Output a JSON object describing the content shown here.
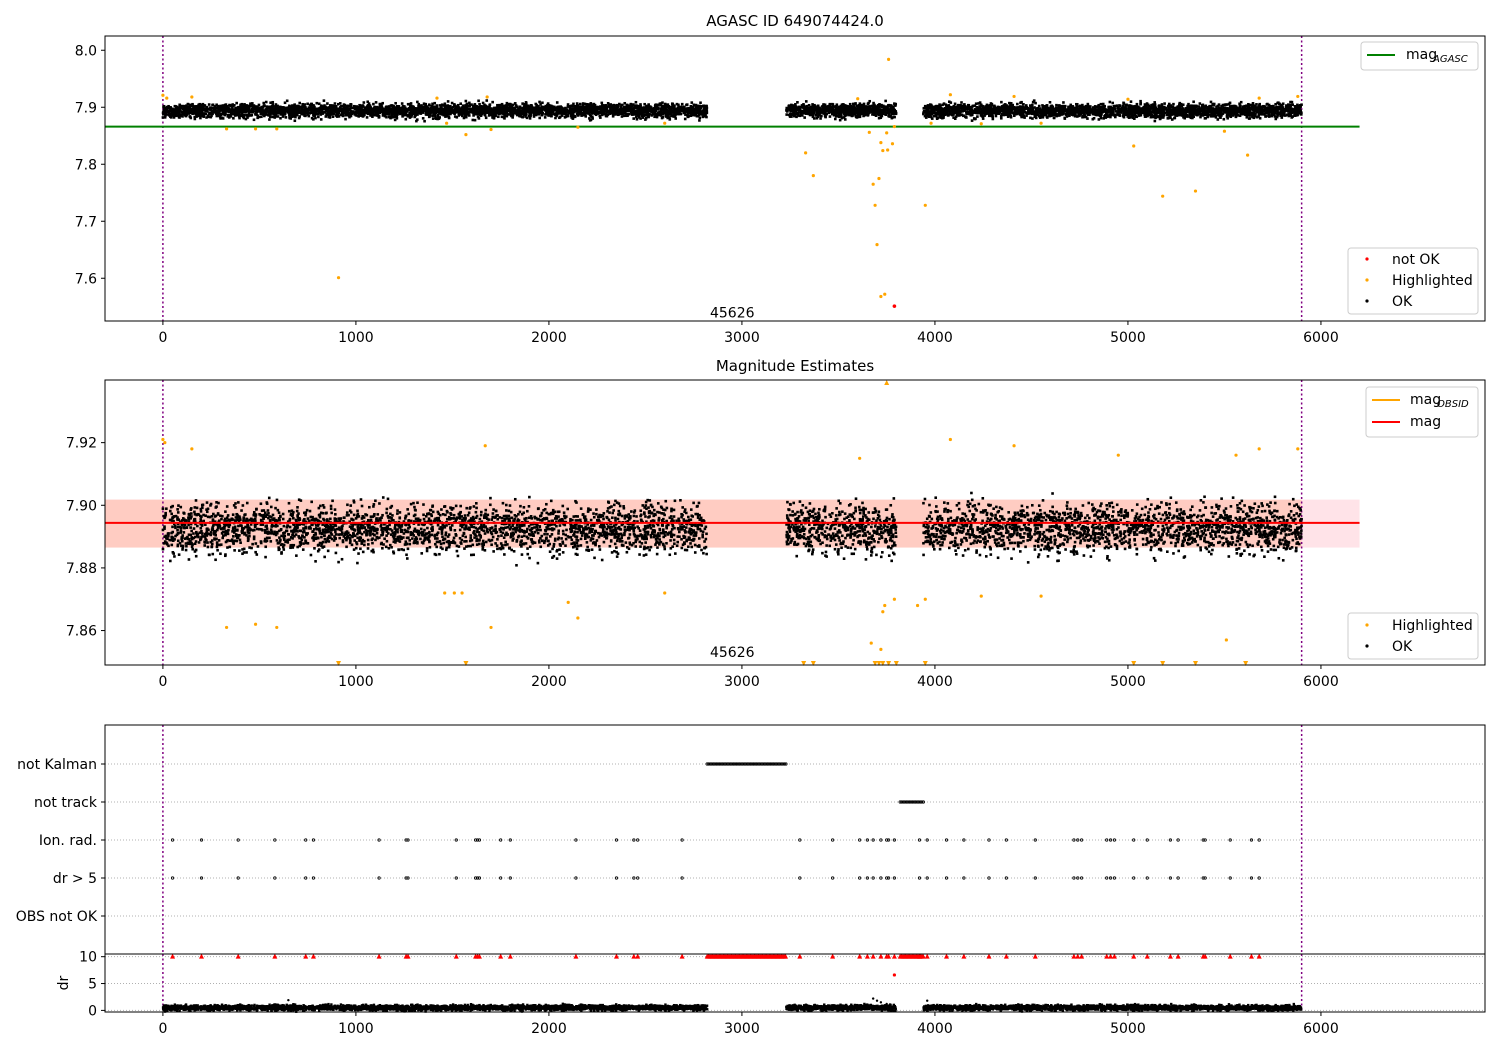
{
  "chart_data": [
    {
      "id": "agasc",
      "type": "scatter",
      "title": "AGASC ID 649074424.0",
      "xlabel": "",
      "ylabel": "",
      "xlim": [
        -300,
        6850
      ],
      "ylim": [
        7.525,
        8.025
      ],
      "x_ticks": [
        0,
        1000,
        2000,
        3000,
        4000,
        5000,
        6000
      ],
      "y_ticks": [
        7.6,
        7.7,
        7.8,
        7.9,
        8.0
      ],
      "y_tick_labels": [
        "7.6",
        "7.7",
        "7.8",
        "7.9",
        "8.0"
      ],
      "grid": false,
      "vlines": [
        0,
        5900
      ],
      "annotation": {
        "text": "45626",
        "x": 2950,
        "y": 7.54
      },
      "reference_lines": [
        {
          "name": "mag",
          "subscript": "AGASC",
          "color": "#008000",
          "y": 7.866,
          "x_range": [
            -300,
            6200
          ]
        }
      ],
      "line_legend": {
        "location": "top-right",
        "entries": [
          {
            "name": "mag",
            "subscript": "AGASC",
            "color": "#008000"
          }
        ]
      },
      "series": [
        {
          "name": "not OK",
          "color": "#ff0000",
          "points": [
            [
              3790,
              7.551
            ]
          ]
        },
        {
          "name": "Highlighted",
          "color": "#ffa500",
          "points": [
            [
              0,
              7.921
            ],
            [
              20,
              7.916
            ],
            [
              150,
              7.918
            ],
            [
              330,
              7.862
            ],
            [
              480,
              7.862
            ],
            [
              590,
              7.862
            ],
            [
              910,
              7.601
            ],
            [
              1420,
              7.916
            ],
            [
              1470,
              7.872
            ],
            [
              1570,
              7.852
            ],
            [
              1680,
              7.918
            ],
            [
              1700,
              7.861
            ],
            [
              2150,
              7.865
            ],
            [
              2600,
              7.872
            ],
            [
              3330,
              7.82
            ],
            [
              3370,
              7.78
            ],
            [
              3600,
              7.915
            ],
            [
              3660,
              7.856
            ],
            [
              3680,
              7.765
            ],
            [
              3690,
              7.728
            ],
            [
              3700,
              7.659
            ],
            [
              3710,
              7.775
            ],
            [
              3720,
              7.568
            ],
            [
              3720,
              7.838
            ],
            [
              3730,
              7.824
            ],
            [
              3740,
              7.572
            ],
            [
              3750,
              7.855
            ],
            [
              3755,
              7.825
            ],
            [
              3760,
              7.984
            ],
            [
              3780,
              7.836
            ],
            [
              3790,
              7.866
            ],
            [
              3950,
              7.728
            ],
            [
              3980,
              7.872
            ],
            [
              4080,
              7.922
            ],
            [
              4240,
              7.871
            ],
            [
              4410,
              7.919
            ],
            [
              4550,
              7.872
            ],
            [
              5000,
              7.914
            ],
            [
              5030,
              7.832
            ],
            [
              5180,
              7.744
            ],
            [
              5350,
              7.753
            ],
            [
              5500,
              7.858
            ],
            [
              5620,
              7.816
            ],
            [
              5680,
              7.916
            ],
            [
              5880,
              7.919
            ]
          ]
        },
        {
          "name": "OK",
          "color": "#000000",
          "band": {
            "y_center": 7.894,
            "y_spread": 0.0085
          },
          "segments": [
            [
              0,
              2820
            ],
            [
              3230,
              3800
            ],
            [
              3940,
              5900
            ]
          ]
        }
      ],
      "legend": {
        "location": "bottom-right",
        "entries": [
          {
            "name": "not OK",
            "color": "#ff0000"
          },
          {
            "name": "Highlighted",
            "color": "#ffa500"
          },
          {
            "name": "OK",
            "color": "#000000"
          }
        ]
      }
    },
    {
      "id": "estimates",
      "type": "scatter",
      "title": "Magnitude Estimates",
      "xlabel": "",
      "ylabel": "",
      "xlim": [
        -300,
        6850
      ],
      "ylim": [
        7.849,
        7.94
      ],
      "x_ticks": [
        0,
        1000,
        2000,
        3000,
        4000,
        5000,
        6000
      ],
      "y_ticks": [
        7.86,
        7.88,
        7.9,
        7.92
      ],
      "y_tick_labels": [
        "7.86",
        "7.88",
        "7.90",
        "7.92"
      ],
      "grid": false,
      "vlines": [
        0,
        5900
      ],
      "annotation": {
        "text": "45626",
        "x": 2950,
        "y": 7.853
      },
      "band": {
        "y_low": 7.8865,
        "y_high": 7.9018,
        "x_range": [
          -300,
          6200
        ],
        "x_overlap_end": 5900,
        "color": "#ffc0cb",
        "overlap_color": "#ffa07a"
      },
      "reference_lines": [
        {
          "name": "mag",
          "color": "#ff0000",
          "y": 7.8944,
          "x_range": [
            -300,
            6200
          ]
        }
      ],
      "line_legend": {
        "location": "top-right",
        "entries": [
          {
            "name": "mag",
            "subscript": "OBSID",
            "color": "#ffa500"
          },
          {
            "name": "mag",
            "subscript": "",
            "color": "#ff0000"
          }
        ]
      },
      "series": [
        {
          "name": "Highlighted",
          "color": "#ffa500",
          "points": [
            [
              0,
              7.921
            ],
            [
              10,
              7.92
            ],
            [
              150,
              7.918
            ],
            [
              330,
              7.861
            ],
            [
              480,
              7.862
            ],
            [
              590,
              7.861
            ],
            [
              1460,
              7.872
            ],
            [
              1510,
              7.872
            ],
            [
              1550,
              7.872
            ],
            [
              1670,
              7.919
            ],
            [
              1700,
              7.861
            ],
            [
              2100,
              7.869
            ],
            [
              2150,
              7.864
            ],
            [
              2600,
              7.872
            ],
            [
              3610,
              7.915
            ],
            [
              3670,
              7.856
            ],
            [
              3720,
              7.854
            ],
            [
              3730,
              7.866
            ],
            [
              3740,
              7.868
            ],
            [
              3790,
              7.87
            ],
            [
              3910,
              7.868
            ],
            [
              3950,
              7.87
            ],
            [
              4080,
              7.921
            ],
            [
              4240,
              7.871
            ],
            [
              4410,
              7.919
            ],
            [
              4550,
              7.871
            ],
            [
              4950,
              7.916
            ],
            [
              5510,
              7.857
            ],
            [
              5560,
              7.916
            ],
            [
              5680,
              7.918
            ],
            [
              5880,
              7.918
            ]
          ]
        },
        {
          "name": "Highlighted (off scale, below)",
          "color": "#ffa500",
          "marker": "triangle-down",
          "points": [
            [
              910,
              7.849
            ],
            [
              1570,
              7.849
            ],
            [
              3320,
              7.849
            ],
            [
              3370,
              7.849
            ],
            [
              3690,
              7.849
            ],
            [
              3710,
              7.849
            ],
            [
              3730,
              7.849
            ],
            [
              3760,
              7.849
            ],
            [
              3800,
              7.849
            ],
            [
              3950,
              7.849
            ],
            [
              5030,
              7.849
            ],
            [
              5180,
              7.849
            ],
            [
              5350,
              7.849
            ],
            [
              5610,
              7.849
            ]
          ]
        },
        {
          "name": "Highlighted (off scale, above)",
          "color": "#ffa500",
          "marker": "triangle-up",
          "points": [
            [
              3750,
              7.94
            ]
          ]
        },
        {
          "name": "OK",
          "color": "#000000",
          "band": {
            "y_center": 7.8925,
            "y_spread": 0.0055
          },
          "segments": [
            [
              0,
              2820
            ],
            [
              3230,
              3800
            ],
            [
              3940,
              5900
            ]
          ]
        }
      ],
      "legend": {
        "location": "bottom-right",
        "entries": [
          {
            "name": "Highlighted",
            "color": "#ffa500"
          },
          {
            "name": "OK",
            "color": "#000000"
          }
        ]
      }
    },
    {
      "id": "flags",
      "type": "scatter",
      "title": "",
      "xlabel": "",
      "ylabel": "",
      "xlim": [
        -300,
        6850
      ],
      "categories": [
        "OBS not OK",
        "dr > 5",
        "Ion. rad.",
        "not track",
        "not Kalman"
      ],
      "grid": true,
      "vlines": [
        0,
        5900
      ],
      "series": [
        {
          "name": "not Kalman",
          "color": "#000000",
          "range": [
            2820,
            3230
          ]
        },
        {
          "name": "not track",
          "color": "#000000",
          "range": [
            3820,
            3940
          ]
        },
        {
          "name": "Ion. rad.",
          "color": "#000000",
          "x": [
            50,
            200,
            390,
            580,
            740,
            780,
            1120,
            1260,
            1270,
            1520,
            1620,
            1630,
            1640,
            1750,
            1800,
            2140,
            2350,
            2440,
            2460,
            2690,
            3300,
            3470,
            3610,
            3650,
            3680,
            3720,
            3750,
            3760,
            3790,
            3920,
            3960,
            4060,
            4150,
            4280,
            4370,
            4520,
            4720,
            4740,
            4760,
            4890,
            4910,
            4930,
            5030,
            5100,
            5220,
            5260,
            5390,
            5400,
            5530,
            5640,
            5680
          ]
        },
        {
          "name": "dr > 5",
          "color": "#000000",
          "x": [
            50,
            200,
            390,
            580,
            740,
            780,
            1120,
            1260,
            1270,
            1520,
            1620,
            1630,
            1640,
            1750,
            1800,
            2140,
            2350,
            2440,
            2460,
            2690,
            3300,
            3470,
            3610,
            3650,
            3680,
            3720,
            3750,
            3760,
            3790,
            3920,
            3960,
            4060,
            4150,
            4280,
            4370,
            4520,
            4720,
            4740,
            4760,
            4890,
            4910,
            4930,
            5030,
            5100,
            5220,
            5260,
            5390,
            5400,
            5530,
            5640,
            5680
          ]
        }
      ]
    },
    {
      "id": "dr",
      "type": "scatter",
      "title": "",
      "xlabel": "",
      "ylabel": "dr",
      "xlim": [
        -300,
        6850
      ],
      "ylim": [
        -0.3,
        10.5
      ],
      "x_ticks": [
        0,
        1000,
        2000,
        3000,
        4000,
        5000,
        6000
      ],
      "y_ticks": [
        0,
        5,
        10
      ],
      "grid": true,
      "vlines": [
        0,
        5900
      ],
      "series": [
        {
          "name": "dr capped at 10",
          "color": "#ff0000",
          "marker": "triangle-up",
          "x": [
            50,
            200,
            390,
            580,
            740,
            780,
            1120,
            1260,
            1270,
            1520,
            1620,
            1630,
            1640,
            1750,
            1800,
            2140,
            2350,
            2440,
            2460,
            2690,
            3300,
            3470,
            3610,
            3650,
            3680,
            3720,
            3750,
            3760,
            3790,
            3920,
            3960,
            4060,
            4150,
            4280,
            4370,
            4520,
            4720,
            4740,
            4760,
            4890,
            4910,
            4930,
            5030,
            5100,
            5220,
            5260,
            5390,
            5400,
            5530,
            5640,
            5680
          ],
          "ranges": [
            [
              2820,
              3230
            ],
            [
              3820,
              3940
            ]
          ],
          "y": 10
        },
        {
          "name": "dr outlier",
          "color": "#ff0000",
          "points": [
            [
              3790,
              6.6
            ]
          ]
        },
        {
          "name": "dr",
          "color": "#000000",
          "band": {
            "y_center": 0.5,
            "y_spread": 0.35
          },
          "segments": [
            [
              0,
              2820
            ],
            [
              3230,
              3800
            ],
            [
              3940,
              5900
            ]
          ],
          "extra_points": [
            [
              650,
              1.9
            ],
            [
              3680,
              2.2
            ],
            [
              3700,
              1.8
            ],
            [
              3720,
              1.5
            ],
            [
              3750,
              1.2
            ],
            [
              3960,
              1.8
            ]
          ]
        }
      ]
    }
  ]
}
